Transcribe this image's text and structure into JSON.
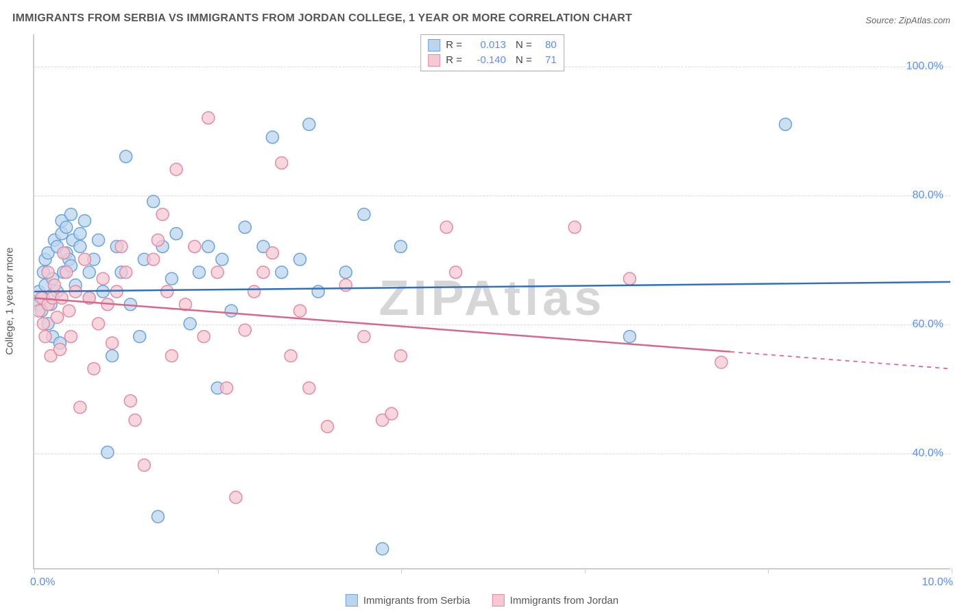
{
  "title": "IMMIGRANTS FROM SERBIA VS IMMIGRANTS FROM JORDAN COLLEGE, 1 YEAR OR MORE CORRELATION CHART",
  "source": "Source: ZipAtlas.com",
  "watermark": "ZIPAtlas",
  "chart": {
    "type": "scatter",
    "ylabel": "College, 1 year or more",
    "xlim": [
      0,
      10
    ],
    "ylim": [
      22,
      105
    ],
    "yticks": [
      40,
      60,
      80,
      100
    ],
    "ytick_labels": [
      "40.0%",
      "60.0%",
      "80.0%",
      "100.0%"
    ],
    "xtick_positions": [
      0,
      2,
      4,
      6,
      8,
      10
    ],
    "xtick_labels": {
      "min": "0.0%",
      "max": "10.0%"
    },
    "grid_color": "#d9d9d9",
    "axis_color": "#cccccc",
    "background_color": "#ffffff",
    "marker_radius": 9,
    "marker_stroke_width": 1.5,
    "line_width": 2.5,
    "series": [
      {
        "name": "Immigrants from Serbia",
        "fill": "#bcd5ee",
        "stroke": "#6aa3de",
        "line_color": "#2f6fc0",
        "r_value": "0.013",
        "n_value": "80",
        "trend": {
          "y_at_xmin": 65.0,
          "y_at_xmax": 66.5,
          "x_solid_end": 10.0
        },
        "points": [
          [
            0.05,
            63
          ],
          [
            0.05,
            65
          ],
          [
            0.08,
            62
          ],
          [
            0.1,
            68
          ],
          [
            0.1,
            64
          ],
          [
            0.12,
            70
          ],
          [
            0.12,
            66
          ],
          [
            0.15,
            60
          ],
          [
            0.15,
            71
          ],
          [
            0.18,
            63
          ],
          [
            0.2,
            58
          ],
          [
            0.2,
            67
          ],
          [
            0.22,
            73
          ],
          [
            0.25,
            72
          ],
          [
            0.25,
            65
          ],
          [
            0.28,
            57
          ],
          [
            0.3,
            76
          ],
          [
            0.3,
            74
          ],
          [
            0.32,
            68
          ],
          [
            0.35,
            71
          ],
          [
            0.35,
            75
          ],
          [
            0.38,
            70
          ],
          [
            0.4,
            77
          ],
          [
            0.4,
            69
          ],
          [
            0.42,
            73
          ],
          [
            0.45,
            66
          ],
          [
            0.5,
            74
          ],
          [
            0.5,
            72
          ],
          [
            0.55,
            76
          ],
          [
            0.6,
            68
          ],
          [
            0.6,
            64
          ],
          [
            0.65,
            70
          ],
          [
            0.7,
            73
          ],
          [
            0.75,
            65
          ],
          [
            0.8,
            40
          ],
          [
            0.85,
            55
          ],
          [
            0.9,
            72
          ],
          [
            0.95,
            68
          ],
          [
            1.0,
            86
          ],
          [
            1.05,
            63
          ],
          [
            1.15,
            58
          ],
          [
            1.2,
            70
          ],
          [
            1.3,
            79
          ],
          [
            1.35,
            30
          ],
          [
            1.4,
            72
          ],
          [
            1.5,
            67
          ],
          [
            1.55,
            74
          ],
          [
            1.7,
            60
          ],
          [
            1.8,
            68
          ],
          [
            1.9,
            72
          ],
          [
            2.0,
            50
          ],
          [
            2.05,
            70
          ],
          [
            2.15,
            62
          ],
          [
            2.3,
            75
          ],
          [
            2.5,
            72
          ],
          [
            2.6,
            89
          ],
          [
            2.7,
            68
          ],
          [
            2.9,
            70
          ],
          [
            3.0,
            91
          ],
          [
            3.1,
            65
          ],
          [
            3.4,
            68
          ],
          [
            3.6,
            77
          ],
          [
            3.8,
            25
          ],
          [
            4.0,
            72
          ],
          [
            6.5,
            58
          ],
          [
            8.2,
            91
          ]
        ]
      },
      {
        "name": "Immigrants from Jordan",
        "fill": "#f5c8d3",
        "stroke": "#e48aa2",
        "line_color": "#d96688",
        "r_value": "-0.140",
        "n_value": "71",
        "trend": {
          "y_at_xmin": 64.0,
          "y_at_xmax": 53.0,
          "x_solid_end": 7.6
        },
        "points": [
          [
            0.05,
            62
          ],
          [
            0.08,
            64
          ],
          [
            0.1,
            60
          ],
          [
            0.12,
            58
          ],
          [
            0.15,
            63
          ],
          [
            0.15,
            68
          ],
          [
            0.18,
            55
          ],
          [
            0.2,
            64
          ],
          [
            0.22,
            66
          ],
          [
            0.25,
            61
          ],
          [
            0.28,
            56
          ],
          [
            0.3,
            64
          ],
          [
            0.32,
            71
          ],
          [
            0.35,
            68
          ],
          [
            0.38,
            62
          ],
          [
            0.4,
            58
          ],
          [
            0.45,
            65
          ],
          [
            0.5,
            47
          ],
          [
            0.55,
            70
          ],
          [
            0.6,
            64
          ],
          [
            0.65,
            53
          ],
          [
            0.7,
            60
          ],
          [
            0.75,
            67
          ],
          [
            0.8,
            63
          ],
          [
            0.85,
            57
          ],
          [
            0.9,
            65
          ],
          [
            0.95,
            72
          ],
          [
            1.0,
            68
          ],
          [
            1.05,
            48
          ],
          [
            1.1,
            45
          ],
          [
            1.2,
            38
          ],
          [
            1.3,
            70
          ],
          [
            1.35,
            73
          ],
          [
            1.4,
            77
          ],
          [
            1.45,
            65
          ],
          [
            1.5,
            55
          ],
          [
            1.55,
            84
          ],
          [
            1.65,
            63
          ],
          [
            1.75,
            72
          ],
          [
            1.85,
            58
          ],
          [
            1.9,
            92
          ],
          [
            2.0,
            68
          ],
          [
            2.1,
            50
          ],
          [
            2.2,
            33
          ],
          [
            2.3,
            59
          ],
          [
            2.4,
            65
          ],
          [
            2.5,
            68
          ],
          [
            2.6,
            71
          ],
          [
            2.7,
            85
          ],
          [
            2.8,
            55
          ],
          [
            2.9,
            62
          ],
          [
            3.0,
            50
          ],
          [
            3.2,
            44
          ],
          [
            3.4,
            66
          ],
          [
            3.6,
            58
          ],
          [
            3.8,
            45
          ],
          [
            3.9,
            46
          ],
          [
            4.0,
            55
          ],
          [
            4.5,
            75
          ],
          [
            4.6,
            68
          ],
          [
            5.9,
            75
          ],
          [
            6.5,
            67
          ],
          [
            7.5,
            54
          ]
        ]
      }
    ],
    "legend_top": {
      "r_label": "R =",
      "n_label": "N ="
    },
    "legend_bottom": [
      "Immigrants from Serbia",
      "Immigrants from Jordan"
    ]
  }
}
